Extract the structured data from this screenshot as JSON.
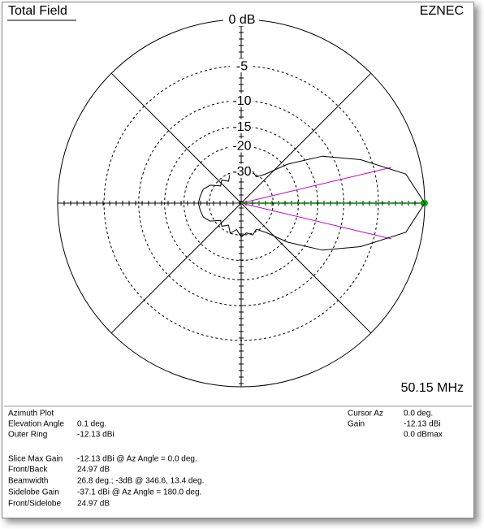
{
  "chart_data": {
    "type": "polar",
    "title": "Total Field",
    "brand": "EZNEC",
    "frequency": "50.15 MHz",
    "x": [
      0,
      10,
      20,
      30,
      40,
      50,
      60,
      70,
      80,
      90,
      100,
      110,
      120,
      130,
      140,
      150,
      160,
      170,
      180,
      190,
      200,
      210,
      220,
      230,
      240,
      250,
      260,
      270,
      280,
      290,
      300,
      310,
      320,
      330,
      340,
      350
    ],
    "values": [
      0,
      -1.6,
      -6.3,
      -11.5,
      -19,
      -27,
      -31,
      -29,
      -31,
      -29,
      -33,
      -30,
      -34,
      -31,
      -33,
      -28,
      -26,
      -25.5,
      -25,
      -25.5,
      -26,
      -28,
      -33,
      -31,
      -34,
      -30,
      -33,
      -29,
      -31,
      -29,
      -31,
      -27,
      -19,
      -11.5,
      -6.3,
      -1.6
    ],
    "color": "#000000",
    "rticks": [
      {
        "value": 0,
        "label": "0 dB"
      },
      -5,
      -10,
      -15,
      -20,
      -30
    ]
  },
  "info": {
    "left": [
      {
        "label": "Azimuth Plot"
      },
      {
        "label": "Elevation Angle",
        "value": "0.1 deg."
      },
      {
        "label": "Outer Ring",
        "value": "-12.13 dBi"
      },
      {
        "label": "Slice Max Gain",
        "value": "-12.13 dBi @ Az Angle = 0.0 deg."
      },
      {
        "label": "Front/Back",
        "value": "24.97 dB"
      },
      {
        "label": "Beamwidth",
        "value": "26.8 deg.; -3dB @ 346.6, 13.4 deg."
      },
      {
        "label": "Sidelobe Gain",
        "value": "-37.1 dBi @ Az Angle = 180.0 deg."
      },
      {
        "label": "Front/Sidelobe",
        "value": "24.97 dB"
      }
    ],
    "right": [
      {
        "label": "Cursor Az",
        "value": "0.0 deg."
      },
      {
        "label": "Gain",
        "value": "-12.13 dBi"
      },
      {
        "value": "0.0 dBmax"
      }
    ]
  }
}
